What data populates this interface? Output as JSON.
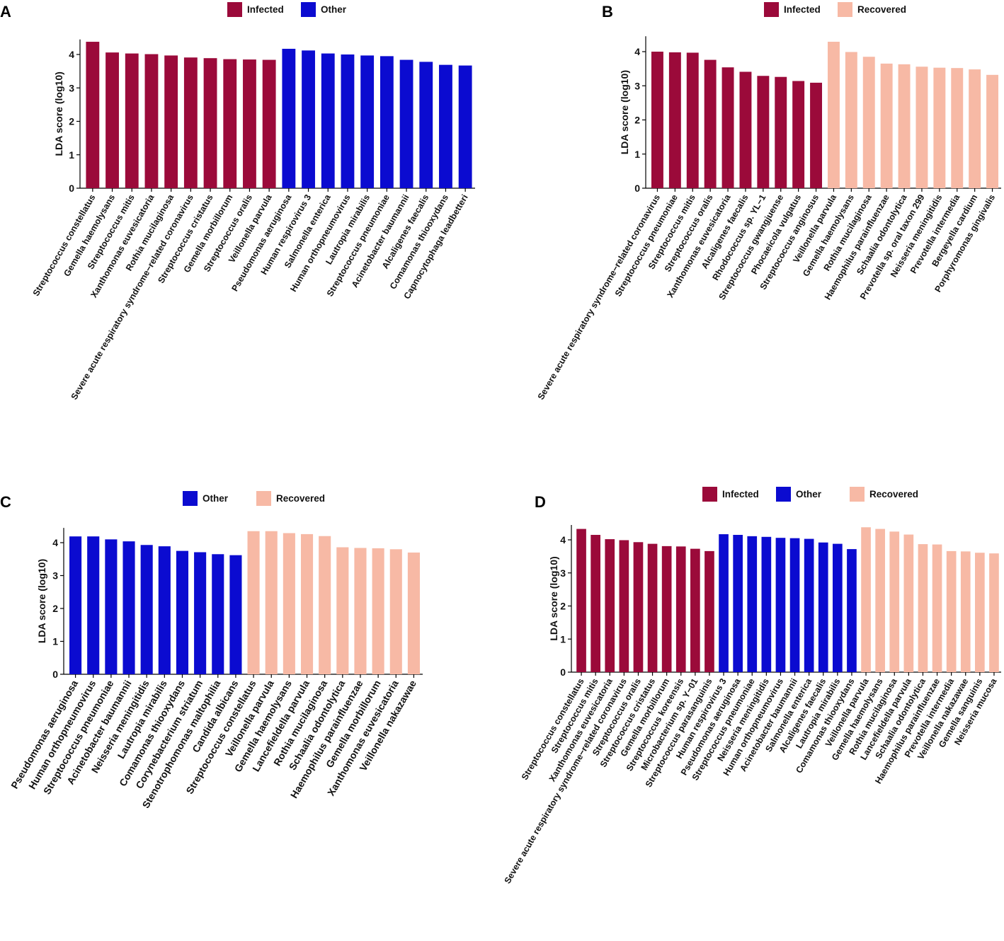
{
  "colors": {
    "Infected": "#9b0a3a",
    "Other": "#0b0bd0",
    "Recovered": "#f7b9a5"
  },
  "chart_data": [
    {
      "panel": "A",
      "type": "bar",
      "legend": [
        "Infected",
        "Other"
      ],
      "ylabel": "LDA score (log10)",
      "ylim": [
        0,
        4.45
      ],
      "yticks": [
        0,
        1,
        2,
        3,
        4
      ],
      "categories": [
        "Streptococcus constellatus",
        "Gemella haemolysans",
        "Streptococcus mitis",
        "Xanthomonas euvesicatoria",
        "Rothia mucilaginosa",
        "Severe acute respiratory syndrome−related coronavirus",
        "Streptococcus cristatus",
        "Gemella morbillorum",
        "Streptococcus oralis",
        "Veillonella parvula",
        "Pseudomonas aeruginosa",
        "Human respirovirus 3",
        "Salmonella enterica",
        "Human orthopneumovirus",
        "Lautropia mirabilis",
        "Streptococcus pneumoniae",
        "Acinetobacter baumannii",
        "Alcaligenes faecalis",
        "Comamonas thiooxydans",
        "Capnocytophaga leadbetteri"
      ],
      "values": [
        4.38,
        4.06,
        4.03,
        4.01,
        3.97,
        3.91,
        3.89,
        3.86,
        3.85,
        3.84,
        4.17,
        4.12,
        4.03,
        4.0,
        3.97,
        3.95,
        3.84,
        3.78,
        3.69,
        3.67
      ],
      "groups": [
        "Infected",
        "Infected",
        "Infected",
        "Infected",
        "Infected",
        "Infected",
        "Infected",
        "Infected",
        "Infected",
        "Infected",
        "Other",
        "Other",
        "Other",
        "Other",
        "Other",
        "Other",
        "Other",
        "Other",
        "Other",
        "Other"
      ]
    },
    {
      "panel": "B",
      "type": "bar",
      "legend": [
        "Infected",
        "Recovered"
      ],
      "ylabel": "LDA score (log10)",
      "ylim": [
        0,
        4.45
      ],
      "yticks": [
        0,
        1,
        2,
        3,
        4
      ],
      "categories": [
        "Severe acute respiratory syndrome−related coronavirus",
        "Streptococcus pneumoniae",
        "Streptococcus mitis",
        "Streptococcus oralis",
        "Xanthomonas euvesicatoria",
        "Alcaligenes faecalis",
        "Rhodococcus sp. YL−1",
        "Streptococcus gwangjuense",
        "Phocaeicola vulgatus",
        "Streptococcus anginosus",
        "Veillonella parvula",
        "Gemella haemolysans",
        "Rothia mucilaginosa",
        "Haemophilus parainfluenzae",
        "Schaalia odontolytica",
        "Prevotella sp. oral taxon 299",
        "Neisseria meningitidis",
        "Prevotella intermedia",
        "Bergeyella cardium",
        "Porphyromonas gingivalis"
      ],
      "values": [
        4.0,
        3.98,
        3.97,
        3.76,
        3.54,
        3.41,
        3.29,
        3.26,
        3.14,
        3.09,
        4.29,
        3.99,
        3.85,
        3.65,
        3.63,
        3.56,
        3.53,
        3.52,
        3.48,
        3.32
      ],
      "groups": [
        "Infected",
        "Infected",
        "Infected",
        "Infected",
        "Infected",
        "Infected",
        "Infected",
        "Infected",
        "Infected",
        "Infected",
        "Recovered",
        "Recovered",
        "Recovered",
        "Recovered",
        "Recovered",
        "Recovered",
        "Recovered",
        "Recovered",
        "Recovered",
        "Recovered"
      ]
    },
    {
      "panel": "C",
      "type": "bar",
      "legend": [
        "Other",
        "Recovered"
      ],
      "ylabel": "LDA score (log10)",
      "ylim": [
        0,
        4.45
      ],
      "yticks": [
        0,
        1,
        2,
        3,
        4
      ],
      "categories": [
        "Pseudomonas aeruginosa",
        "Human orthopneumovirus",
        "Streptococcus pneumoniae",
        "Acinetobacter baumannii",
        "Neisseria meningitidis",
        "Lautropia mirabilis",
        "Comamonas thiooxydans",
        "Corynebacterium striatum",
        "Stenotrophomonas maltophilia",
        "Candida albicans",
        "Streptococcus constellatus",
        "Veillonella parvula",
        "Gemella haemolysans",
        "Lancefieldella parvula",
        "Rothia mucilaginosa",
        "Schaalia odontolytica",
        "Haemophilus parainfluenzae",
        "Gemella morbillorum",
        "Xanthomonas euvesicatoria",
        "Veillonella nakazawae"
      ],
      "values": [
        4.19,
        4.19,
        4.1,
        4.04,
        3.93,
        3.89,
        3.75,
        3.71,
        3.65,
        3.62,
        4.35,
        4.35,
        4.29,
        4.26,
        4.2,
        3.86,
        3.84,
        3.83,
        3.8,
        3.7
      ],
      "groups": [
        "Other",
        "Other",
        "Other",
        "Other",
        "Other",
        "Other",
        "Other",
        "Other",
        "Other",
        "Other",
        "Recovered",
        "Recovered",
        "Recovered",
        "Recovered",
        "Recovered",
        "Recovered",
        "Recovered",
        "Recovered",
        "Recovered",
        "Recovered"
      ]
    },
    {
      "panel": "D",
      "type": "bar",
      "legend": [
        "Infected",
        "Other",
        "Recovered"
      ],
      "ylabel": "LDA score (log10)",
      "ylim": [
        0,
        4.45
      ],
      "yticks": [
        0,
        1,
        2,
        3,
        4
      ],
      "categories": [
        "Streptococcus constellatus",
        "Streptococcus mitis",
        "Xanthomonas euvesicatoria",
        "Severe acute respiratory syndrome−related coronavirus",
        "Streptococcus oralis",
        "Streptococcus cristatus",
        "Gemella morbillorum",
        "Streptococcus koreensis",
        "Microbacterium sp. Y−01",
        "Streptococcus parasanguinis",
        "Human respirovirus 3",
        "Pseudomonas aeruginosa",
        "Streptococcus pneumoniae",
        "Neisseria meningitidis",
        "Human orthopneumovirus",
        "Acinetobacter baumannii",
        "Salmonella enterica",
        "Alcaligenes faecalis",
        "Lautropia mirabilis",
        "Comamonas thiooxydans",
        "Veillonella parvula",
        "Gemella haemolysans",
        "Rothia mucilaginosa",
        "Lancefieldella parvula",
        "Schaalia odontolytica",
        "Haemophilus parainfluenzae",
        "Prevotella intermedia",
        "Veillonella nakazawae",
        "Gemella sanguinis",
        "Neisseria mucosa"
      ],
      "values": [
        4.33,
        4.15,
        4.02,
        3.99,
        3.93,
        3.88,
        3.81,
        3.8,
        3.73,
        3.66,
        4.17,
        4.15,
        4.11,
        4.09,
        4.06,
        4.05,
        4.03,
        3.92,
        3.88,
        3.72,
        4.38,
        4.33,
        4.25,
        4.16,
        3.87,
        3.86,
        3.66,
        3.65,
        3.61,
        3.59
      ],
      "groups": [
        "Infected",
        "Infected",
        "Infected",
        "Infected",
        "Infected",
        "Infected",
        "Infected",
        "Infected",
        "Infected",
        "Infected",
        "Other",
        "Other",
        "Other",
        "Other",
        "Other",
        "Other",
        "Other",
        "Other",
        "Other",
        "Other",
        "Recovered",
        "Recovered",
        "Recovered",
        "Recovered",
        "Recovered",
        "Recovered",
        "Recovered",
        "Recovered",
        "Recovered",
        "Recovered"
      ]
    }
  ]
}
